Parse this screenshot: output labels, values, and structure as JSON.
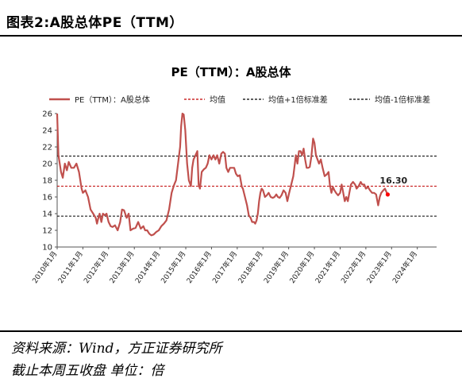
{
  "page": {
    "figure_title": "图表2:A股总体PE（TTM）",
    "source_text": "资料来源：Wind，方正证券研究所",
    "unit_text": "截止本周五收盘 单位：倍"
  },
  "chart_data": {
    "type": "line",
    "title": "PE（TTM）：A股总体",
    "xlabel": "",
    "ylabel": "",
    "ylim": [
      10,
      26
    ],
    "yticks": [
      10,
      12,
      14,
      16,
      18,
      20,
      22,
      24,
      26
    ],
    "xlim": [
      2010.0,
      2024.75
    ],
    "xticks": [
      {
        "label": "2010年1月",
        "value": 2010
      },
      {
        "label": "2011年1月",
        "value": 2011
      },
      {
        "label": "2012年1月",
        "value": 2012
      },
      {
        "label": "2013年1月",
        "value": 2013
      },
      {
        "label": "2014年1月",
        "value": 2014
      },
      {
        "label": "2015年1月",
        "value": 2015
      },
      {
        "label": "2016年1月",
        "value": 2016
      },
      {
        "label": "2017年1月",
        "value": 2017
      },
      {
        "label": "2018年1月",
        "value": 2018
      },
      {
        "label": "2019年1月",
        "value": 2019
      },
      {
        "label": "2020年1月",
        "value": 2020
      },
      {
        "label": "2021年1月",
        "value": 2021
      },
      {
        "label": "2022年1月",
        "value": 2022
      },
      {
        "label": "2023年1月",
        "value": 2023
      },
      {
        "label": "2024年1月",
        "value": 2024
      }
    ],
    "grid": false,
    "legend_position": "top",
    "series": [
      {
        "name": "PE（TTM）：A股总体",
        "color": "#c0504d",
        "points": [
          [
            2010.0,
            26.0
          ],
          [
            2010.05,
            21.0
          ],
          [
            2010.15,
            19.0
          ],
          [
            2010.22,
            18.3
          ],
          [
            2010.3,
            20.0
          ],
          [
            2010.38,
            19.2
          ],
          [
            2010.45,
            20.2
          ],
          [
            2010.55,
            19.5
          ],
          [
            2010.65,
            19.5
          ],
          [
            2010.75,
            20.0
          ],
          [
            2010.85,
            19.0
          ],
          [
            2010.95,
            17.0
          ],
          [
            2011.0,
            16.5
          ],
          [
            2011.1,
            16.8
          ],
          [
            2011.2,
            16.0
          ],
          [
            2011.3,
            14.5
          ],
          [
            2011.4,
            14.0
          ],
          [
            2011.5,
            13.5
          ],
          [
            2011.55,
            12.8
          ],
          [
            2011.6,
            13.5
          ],
          [
            2011.65,
            14.0
          ],
          [
            2011.72,
            13.0
          ],
          [
            2011.78,
            14.0
          ],
          [
            2011.85,
            13.8
          ],
          [
            2011.92,
            14.0
          ],
          [
            2012.0,
            13.0
          ],
          [
            2012.08,
            12.5
          ],
          [
            2012.15,
            12.4
          ],
          [
            2012.25,
            12.6
          ],
          [
            2012.35,
            12.0
          ],
          [
            2012.45,
            13.0
          ],
          [
            2012.52,
            14.5
          ],
          [
            2012.6,
            14.4
          ],
          [
            2012.7,
            13.5
          ],
          [
            2012.78,
            14.0
          ],
          [
            2012.85,
            12.0
          ],
          [
            2012.95,
            12.2
          ],
          [
            2013.05,
            12.3
          ],
          [
            2013.15,
            13.0
          ],
          [
            2013.25,
            12.2
          ],
          [
            2013.35,
            12.5
          ],
          [
            2013.42,
            12.0
          ],
          [
            2013.5,
            12.0
          ],
          [
            2013.58,
            11.6
          ],
          [
            2013.66,
            11.4
          ],
          [
            2013.75,
            11.5
          ],
          [
            2013.85,
            11.8
          ],
          [
            2013.95,
            12.0
          ],
          [
            2014.05,
            12.5
          ],
          [
            2014.15,
            12.8
          ],
          [
            2014.25,
            13.2
          ],
          [
            2014.35,
            14.5
          ],
          [
            2014.45,
            16.5
          ],
          [
            2014.5,
            17.0
          ],
          [
            2014.55,
            17.5
          ],
          [
            2014.62,
            18.0
          ],
          [
            2014.7,
            20.0
          ],
          [
            2014.78,
            22.0
          ],
          [
            2014.82,
            24.5
          ],
          [
            2014.87,
            26.0
          ],
          [
            2014.92,
            25.9
          ],
          [
            2014.98,
            24.0
          ],
          [
            2015.05,
            20.0
          ],
          [
            2015.12,
            18.0
          ],
          [
            2015.2,
            17.3
          ],
          [
            2015.25,
            19.5
          ],
          [
            2015.3,
            20.5
          ],
          [
            2015.38,
            21.0
          ],
          [
            2015.45,
            21.5
          ],
          [
            2015.5,
            17.5
          ],
          [
            2015.55,
            17.0
          ],
          [
            2015.62,
            19.0
          ],
          [
            2015.7,
            19.3
          ],
          [
            2015.78,
            19.5
          ],
          [
            2015.85,
            20.0
          ],
          [
            2015.92,
            21.0
          ],
          [
            2016.0,
            20.5
          ],
          [
            2016.08,
            21.0
          ],
          [
            2016.15,
            20.5
          ],
          [
            2016.22,
            21.0
          ],
          [
            2016.3,
            20.0
          ],
          [
            2016.38,
            21.2
          ],
          [
            2016.45,
            21.4
          ],
          [
            2016.52,
            21.2
          ],
          [
            2016.58,
            19.5
          ],
          [
            2016.65,
            19.0
          ],
          [
            2016.72,
            19.5
          ],
          [
            2016.8,
            19.5
          ],
          [
            2016.88,
            19.5
          ],
          [
            2016.95,
            18.8
          ],
          [
            2017.02,
            18.5
          ],
          [
            2017.1,
            18.6
          ],
          [
            2017.18,
            17.2
          ],
          [
            2017.22,
            17.0
          ],
          [
            2017.3,
            16.0
          ],
          [
            2017.38,
            15.0
          ],
          [
            2017.45,
            13.8
          ],
          [
            2017.52,
            13.5
          ],
          [
            2017.58,
            13.0
          ],
          [
            2017.65,
            13.0
          ],
          [
            2017.7,
            12.8
          ],
          [
            2017.75,
            13.2
          ],
          [
            2017.8,
            14.0
          ],
          [
            2017.85,
            15.5
          ],
          [
            2017.9,
            16.5
          ],
          [
            2017.95,
            17.0
          ],
          [
            2018.0,
            16.8
          ],
          [
            2018.08,
            16.0
          ],
          [
            2018.15,
            16.2
          ],
          [
            2018.22,
            16.5
          ],
          [
            2018.3,
            16.0
          ],
          [
            2018.38,
            15.9
          ],
          [
            2018.45,
            16.0
          ],
          [
            2018.52,
            16.3
          ],
          [
            2018.58,
            16.0
          ],
          [
            2018.65,
            15.9
          ],
          [
            2018.72,
            16.2
          ],
          [
            2018.8,
            16.8
          ],
          [
            2018.88,
            16.5
          ],
          [
            2018.95,
            15.5
          ],
          [
            2019.02,
            16.5
          ],
          [
            2019.1,
            17.5
          ],
          [
            2019.18,
            18.5
          ],
          [
            2019.22,
            19.5
          ],
          [
            2019.28,
            21.0
          ],
          [
            2019.34,
            20.0
          ],
          [
            2019.4,
            21.5
          ],
          [
            2019.46,
            21.5
          ],
          [
            2019.52,
            21.0
          ],
          [
            2019.58,
            21.8
          ],
          [
            2019.64,
            20.5
          ],
          [
            2019.7,
            19.5
          ],
          [
            2019.76,
            19.5
          ],
          [
            2019.82,
            19.6
          ],
          [
            2019.88,
            20.8
          ],
          [
            2019.95,
            23.0
          ],
          [
            2020.0,
            22.5
          ],
          [
            2020.06,
            21.0
          ],
          [
            2020.12,
            20.5
          ],
          [
            2020.18,
            20.0
          ],
          [
            2020.25,
            20.5
          ],
          [
            2020.32,
            19.5
          ],
          [
            2020.4,
            18.5
          ],
          [
            2020.48,
            18.7
          ],
          [
            2020.55,
            19.0
          ],
          [
            2020.6,
            17.5
          ],
          [
            2020.66,
            16.5
          ],
          [
            2020.72,
            17.2
          ],
          [
            2020.78,
            16.8
          ],
          [
            2020.84,
            16.5
          ],
          [
            2020.92,
            16.2
          ],
          [
            2021.0,
            16.5
          ],
          [
            2021.06,
            17.5
          ],
          [
            2021.12,
            16.5
          ],
          [
            2021.18,
            15.5
          ],
          [
            2021.24,
            16.0
          ],
          [
            2021.3,
            15.5
          ],
          [
            2021.36,
            16.5
          ],
          [
            2021.42,
            17.5
          ],
          [
            2021.5,
            17.8
          ],
          [
            2021.58,
            17.5
          ],
          [
            2021.64,
            17.0
          ],
          [
            2021.72,
            17.3
          ],
          [
            2021.8,
            17.8
          ],
          [
            2021.86,
            17.5
          ],
          [
            2021.94,
            17.5
          ],
          [
            2022.0,
            17.0
          ],
          [
            2022.08,
            17.2
          ],
          [
            2022.16,
            16.8
          ],
          [
            2022.24,
            16.5
          ],
          [
            2022.32,
            16.5
          ],
          [
            2022.4,
            16.3
          ],
          [
            2022.48,
            15.0
          ],
          [
            2022.54,
            16.0
          ],
          [
            2022.6,
            16.5
          ],
          [
            2022.68,
            16.8
          ],
          [
            2022.74,
            17.0
          ],
          [
            2022.8,
            16.6
          ],
          [
            2022.85,
            16.3
          ]
        ],
        "last_value_label": "16.30"
      },
      {
        "name": "均值",
        "color": "#c00000",
        "dashed": true,
        "value": 17.3
      },
      {
        "name": "均值+1倍标准差",
        "color": "#000000",
        "dashed": true,
        "value": 20.9
      },
      {
        "name": "均值-1倍标准差",
        "color": "#000000",
        "dashed": true,
        "value": 13.7
      }
    ],
    "end_marker_color": "#ff0000"
  }
}
